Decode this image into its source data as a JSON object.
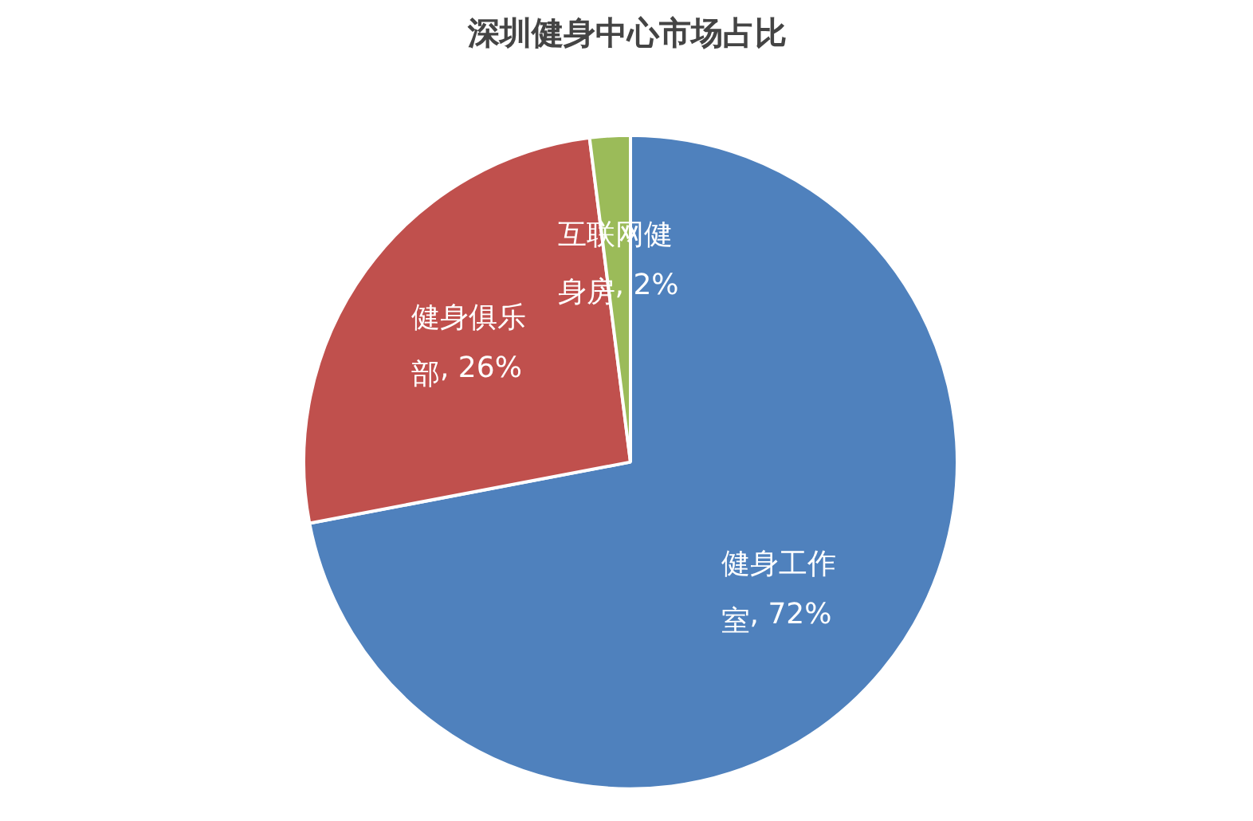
{
  "chart_data": {
    "type": "pie",
    "title": "深圳健身中心市场占比",
    "categories": [
      "健身工作室",
      "健身俱乐部",
      "互联网健身房"
    ],
    "values": [
      72,
      26,
      2
    ],
    "colors": [
      "#4f81bd",
      "#c0504d",
      "#9bbb59"
    ],
    "value_labels": [
      ", 72%",
      ", 26%",
      ", 2%"
    ]
  }
}
